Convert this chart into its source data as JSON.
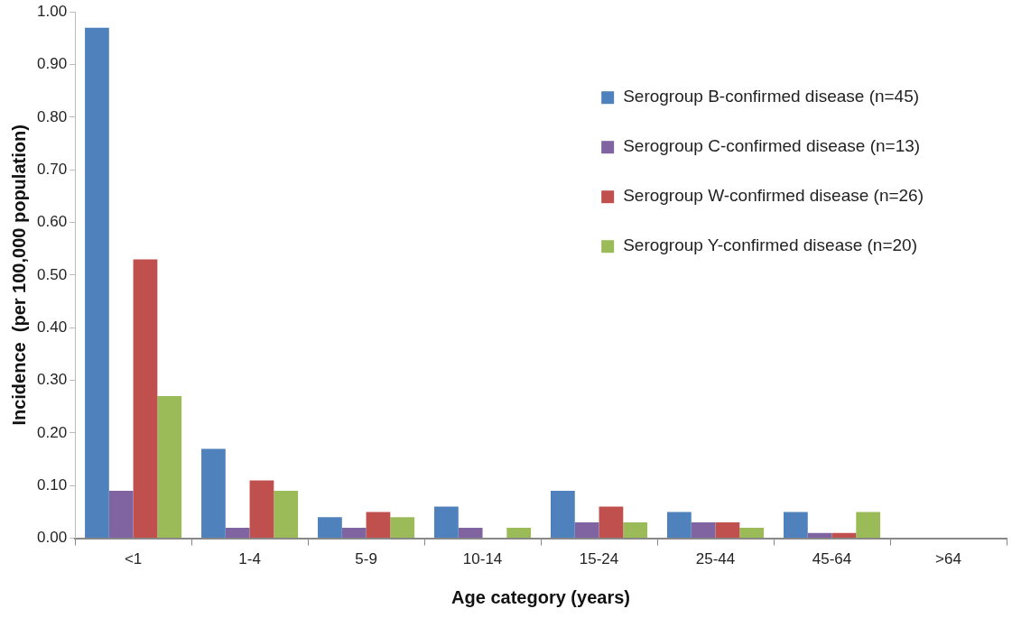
{
  "chart_data": {
    "type": "bar",
    "xlabel": "Age category (years)",
    "ylabel": "Incidence  (per 100,000 population)",
    "categories": [
      "<1",
      "1-4",
      "5-9",
      "10-14",
      "15-24",
      "25-44",
      "45-64",
      ">64"
    ],
    "series": [
      {
        "name": "Serogroup B-confirmed disease (n=45)",
        "color": "#4f81bd",
        "values": [
          0.97,
          0.17,
          0.04,
          0.06,
          0.09,
          0.05,
          0.05,
          0
        ]
      },
      {
        "name": "Serogroup C-confirmed disease (n=13)",
        "color": "#8064a2",
        "values": [
          0.09,
          0.02,
          0.02,
          0.02,
          0.03,
          0.03,
          0.01,
          0
        ]
      },
      {
        "name": "Serogroup W-confirmed disease (n=26)",
        "color": "#c0504d",
        "values": [
          0.53,
          0.11,
          0.05,
          0,
          0.06,
          0.03,
          0.01,
          0
        ]
      },
      {
        "name": "Serogroup Y-confirmed disease (n=20)",
        "color": "#9bbb59",
        "values": [
          0.27,
          0.09,
          0.04,
          0.02,
          0.03,
          0.02,
          0.05,
          0
        ]
      }
    ],
    "ylim": [
      0,
      1
    ],
    "yticks": [
      {
        "value": 0,
        "label": "0.00"
      },
      {
        "value": 0.1,
        "label": "0.10"
      },
      {
        "value": 0.2,
        "label": "0.20"
      },
      {
        "value": 0.3,
        "label": "0.30"
      },
      {
        "value": 0.4,
        "label": "0.40"
      },
      {
        "value": 0.5,
        "label": "0.50"
      },
      {
        "value": 0.6,
        "label": "0.60"
      },
      {
        "value": 0.7,
        "label": "0.70"
      },
      {
        "value": 0.8,
        "label": "0.80"
      },
      {
        "value": 0.9,
        "label": "0.90"
      },
      {
        "value": 1,
        "label": "1.00"
      }
    ],
    "grid": false,
    "legend": "top right"
  }
}
